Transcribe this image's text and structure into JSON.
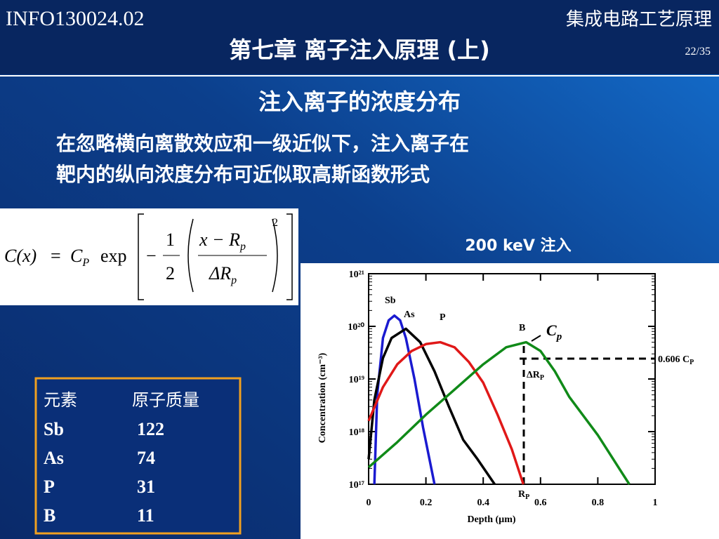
{
  "header": {
    "course": "INFO130024.02",
    "course_name": "集成电路工艺原理",
    "title": "第七章 离子注入原理 (上)",
    "page": "22/35"
  },
  "section_title": "注入离子的浓度分布",
  "body": [
    "在忽略横向离散效应和一级近似下，注入离子在",
    "靶内的纵向浓度分布可近似取高斯函数形式"
  ],
  "formula": {
    "lhs": "C(x)",
    "eq": "=",
    "cp": "C",
    "cp_sub": "P",
    "exp": "exp",
    "minus": "−",
    "one": "1",
    "two": "2",
    "num": "x − R",
    "num_sub": "p",
    "den": "ΔR",
    "den_sub": "p",
    "power": "2"
  },
  "chart_data": {
    "type": "line",
    "title": "200 keV  注入",
    "x_label": "Depth (µm)",
    "y_label": "Concentration (cm⁻³)",
    "y_log": true,
    "xlim": [
      0,
      1
    ],
    "ylim": [
      1e+17,
      1e+21
    ],
    "xticks": [
      0,
      0.2,
      0.4,
      0.6,
      0.8,
      1
    ],
    "yticks": [
      {
        "value": 1e+17,
        "label": "10¹⁷"
      },
      {
        "value": 1e+18,
        "label": "10¹⁸"
      },
      {
        "value": 1e+19,
        "label": "10¹⁹"
      },
      {
        "value": 1e+20,
        "label": "10²⁰"
      },
      {
        "value": 1e+21,
        "label": "10²¹"
      }
    ],
    "series": [
      {
        "name": "Sb",
        "color": "#1a1ad0",
        "x": [
          0.02,
          0.03,
          0.05,
          0.07,
          0.09,
          0.11,
          0.13,
          0.16,
          0.19,
          0.23
        ],
        "values": [
          1e+17,
          5e+18,
          6e+19,
          1.3e+20,
          1.6e+20,
          1.3e+20,
          6e+19,
          1e+19,
          1.2e+18,
          1e+17
        ]
      },
      {
        "name": "As",
        "color": "#000000",
        "x": [
          0,
          0.02,
          0.05,
          0.08,
          0.13,
          0.18,
          0.23,
          0.28,
          0.33,
          0.38,
          0.44
        ],
        "values": [
          3e+17,
          4e+18,
          2.5e+19,
          6e+19,
          9e+19,
          5e+19,
          1.4e+19,
          3e+18,
          7e+17,
          3e+17,
          1e+17
        ]
      },
      {
        "name": "P",
        "color": "#e01818",
        "x": [
          0,
          0.05,
          0.1,
          0.15,
          0.2,
          0.25,
          0.3,
          0.35,
          0.4,
          0.45,
          0.5,
          0.54
        ],
        "values": [
          1.6e+18,
          7e+18,
          1.9e+19,
          3.4e+19,
          4.6e+19,
          5e+19,
          4e+19,
          2.1e+19,
          8.5e+18,
          2.1e+18,
          4.6e+17,
          1e+17
        ]
      },
      {
        "name": "B",
        "color": "#108a18",
        "x": [
          0,
          0.1,
          0.2,
          0.3,
          0.4,
          0.48,
          0.55,
          0.6,
          0.65,
          0.7,
          0.8,
          0.91
        ],
        "values": [
          2.1e+17,
          6.3e+17,
          2.1e+18,
          6.3e+18,
          1.9e+19,
          4e+19,
          5e+19,
          3.4e+19,
          1.4e+19,
          4.6e+18,
          8.6e+17,
          1e+17
        ]
      }
    ],
    "annotations": {
      "peak": "C",
      "peak_sub": "p",
      "rp": "R",
      "rp_sub": "P",
      "delta_rp": "ΔR",
      "delta_rp_sub": "P",
      "level": "0.606 C",
      "level_sub": "P"
    }
  },
  "table": {
    "header": [
      "元素",
      "原子质量"
    ],
    "rows": [
      [
        "Sb",
        122
      ],
      [
        "As",
        74
      ],
      [
        "P",
        31
      ],
      [
        "B",
        11
      ]
    ]
  }
}
